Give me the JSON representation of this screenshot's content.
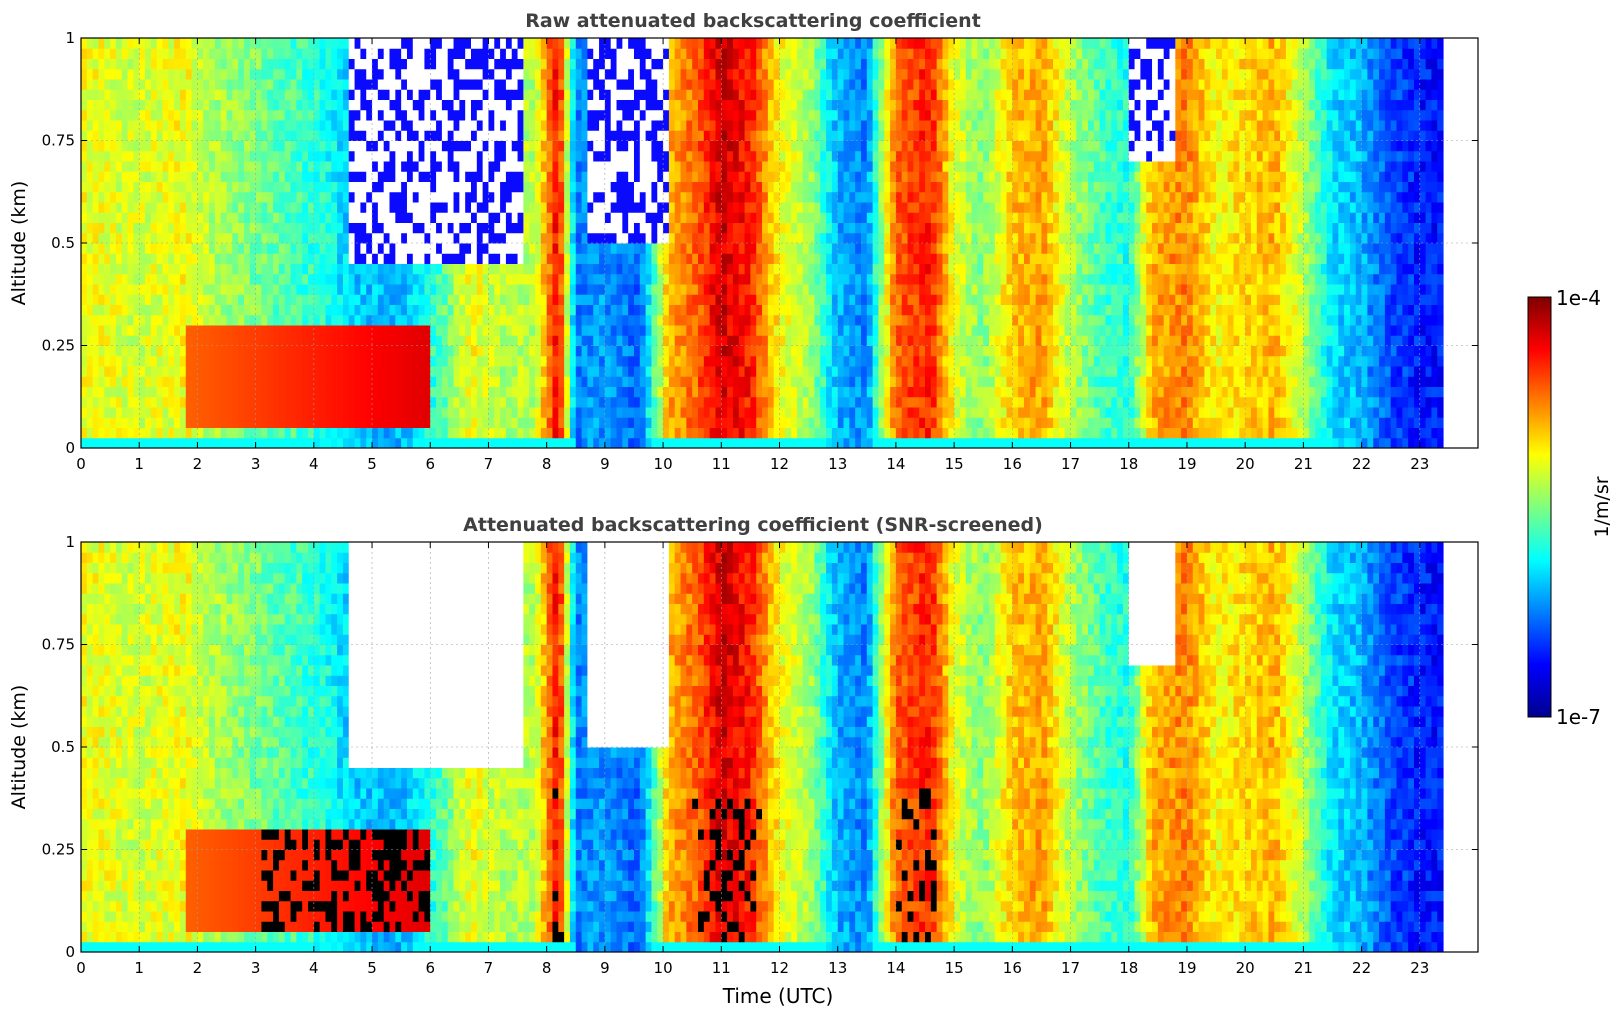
{
  "chart_data": [
    {
      "type": "heatmap",
      "title": "Raw attenuated backscattering coefficient",
      "xlabel": "",
      "ylabel": "Altitude (km)",
      "xlim": [
        0,
        24
      ],
      "ylim": [
        0,
        1
      ],
      "xticks": [
        "0",
        "1",
        "2",
        "3",
        "4",
        "5",
        "6",
        "7",
        "8",
        "9",
        "10",
        "11",
        "12",
        "13",
        "14",
        "15",
        "16",
        "17",
        "18",
        "19",
        "20",
        "21",
        "22",
        "23"
      ],
      "yticks": [
        "0",
        "0.25",
        "0.5",
        "0.75",
        "1"
      ],
      "grid": true,
      "data_extent_hours": [
        0,
        23.4
      ],
      "color_scale": "log10 backscatter, 1e-7 (blue) to 1e-4 (dark red)",
      "description": "Vertical time-height lidar curtain; low-level aerosol/cloud layer ~0.1-0.3 km from 2-6 UTC, deep high-backscatter columns near 8.2, 10.5-12, 14-15, 16-17, 18-21 UTC; low values (blue) near 8.5-10, 13, 22-23.4 UTC."
    },
    {
      "type": "heatmap",
      "title": "Attenuated backscattering coefficient (SNR-screened)",
      "xlabel": "Time (UTC)",
      "ylabel": "Altitude (km)",
      "xlim": [
        0,
        24
      ],
      "ylim": [
        0,
        1
      ],
      "xticks": [
        "0",
        "1",
        "2",
        "3",
        "4",
        "5",
        "6",
        "7",
        "8",
        "9",
        "10",
        "11",
        "12",
        "13",
        "14",
        "15",
        "16",
        "17",
        "18",
        "19",
        "20",
        "21",
        "22",
        "23"
      ],
      "yticks": [
        "0",
        "0.25",
        "0.5",
        "0.75",
        "1"
      ],
      "grid": true,
      "data_extent_hours": [
        0,
        23.4
      ],
      "color_scale": "log10 backscatter, 1e-7 (blue) to 1e-4 (dark red); low-SNR gates removed (white)",
      "description": "Same curtain after SNR screening: noisy upper gates removed (white) near 4.5-7.5 UTC and 9-10 UTC above ~0.4 km; saturated/cloud gates shown black."
    }
  ],
  "colorbar": {
    "label": "1/m/sr",
    "max_label": "1e-4",
    "min_label": "1e-7",
    "colors": [
      "#00008f",
      "#0000ff",
      "#007fff",
      "#00ffff",
      "#7fff7f",
      "#ffff00",
      "#ff7f00",
      "#ff0000",
      "#7f0000"
    ]
  }
}
